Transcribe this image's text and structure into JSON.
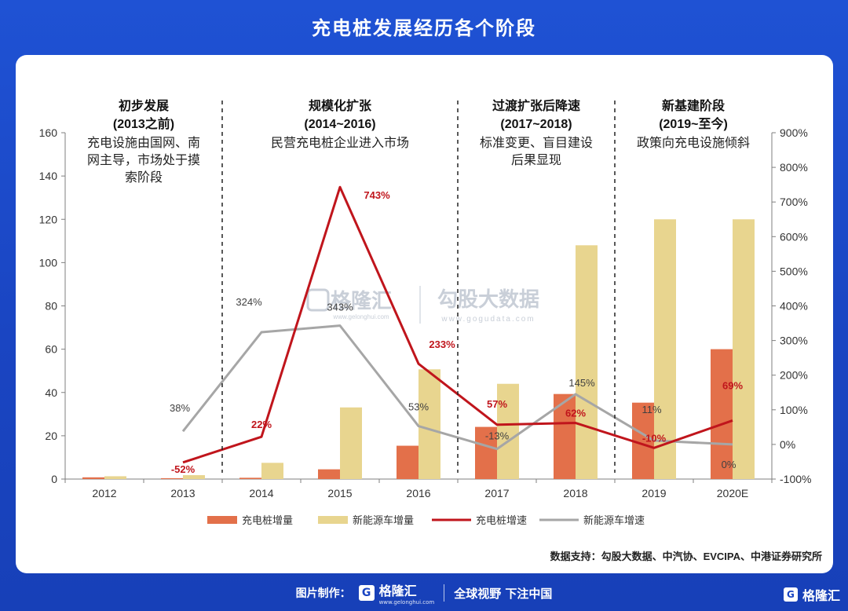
{
  "page": {
    "title": "充电桩发展经历各个阶段",
    "source": "数据支持：勾股大数据、中汽协、EVCIPA、中港证券研究所"
  },
  "watermark": {
    "brand1": "格隆汇",
    "brand1_sub": "www.gelonghui.com",
    "brand2": "勾股大数据",
    "brand2_sub": "www.gogudata.com"
  },
  "footer": {
    "label": "图片制作：",
    "logo_mark": "G",
    "logo_text": "格隆汇",
    "logo_sub": "www.gelonghui.com",
    "slogan": "全球视野 下注中国",
    "corner_logo_text": "格隆汇"
  },
  "stages": [
    {
      "name": "初步发展",
      "period": "(2013之前)",
      "desc": [
        "充电设施由国网、南",
        "网主导，市场处于摸",
        "索阶段"
      ]
    },
    {
      "name": "规模化扩张",
      "period": "(2014~2016)",
      "desc": [
        "民营充电桩企业进入市场"
      ]
    },
    {
      "name": "过渡扩张后降速",
      "period": "(2017~2018)",
      "desc": [
        "标准变更、盲目建设",
        "后果显现"
      ]
    },
    {
      "name": "新基建阶段",
      "period": "(2019~至今)",
      "desc": [
        "政策向充电设施倾斜"
      ]
    }
  ],
  "colors": {
    "charger_bar": "#e3704a",
    "nev_bar": "#e8d58f",
    "charger_line": "#c0151c",
    "nev_line": "#a6a6a6",
    "charger_label": "#c0151c",
    "nev_label": "#404040"
  },
  "chart_data": {
    "type": "bar",
    "categories": [
      "2012",
      "2013",
      "2014",
      "2015",
      "2016",
      "2017",
      "2018",
      "2019",
      "2020E"
    ],
    "series": [
      {
        "name": "充电桩增量",
        "kind": "bar",
        "axis": "left",
        "values": [
          0.8,
          0.4,
          0.6,
          4.5,
          15.4,
          24.1,
          39.3,
          35.3,
          60
        ]
      },
      {
        "name": "新能源车增量",
        "kind": "bar",
        "axis": "left",
        "values": [
          1.3,
          1.8,
          7.5,
          33.1,
          50.7,
          44,
          108,
          120,
          120
        ]
      },
      {
        "name": "充电桩增速",
        "kind": "line",
        "axis": "right",
        "values": [
          null,
          -52,
          22,
          743,
          233,
          57,
          62,
          -10,
          69
        ],
        "labels": [
          null,
          "-52%",
          "22%",
          "743%",
          "233%",
          "57%",
          "62%",
          "-10%",
          "69%"
        ]
      },
      {
        "name": "新能源车增速",
        "kind": "line",
        "axis": "right",
        "values": [
          null,
          38,
          324,
          343,
          53,
          -13,
          145,
          11,
          0
        ],
        "labels": [
          null,
          "38%",
          "324%",
          "343%",
          "53%",
          "-13%",
          "145%",
          "11%",
          "0%"
        ]
      }
    ],
    "left_axis": {
      "ylim": [
        0,
        160
      ],
      "ticks": [
        "0",
        "20",
        "40",
        "60",
        "80",
        "100",
        "120",
        "140",
        "160"
      ]
    },
    "right_axis": {
      "ylim": [
        -100,
        900
      ],
      "ticks": [
        "-100%",
        "0%",
        "100%",
        "200%",
        "300%",
        "400%",
        "500%",
        "600%",
        "700%",
        "800%",
        "900%"
      ]
    },
    "legend_position": "bottom",
    "grid": false
  }
}
